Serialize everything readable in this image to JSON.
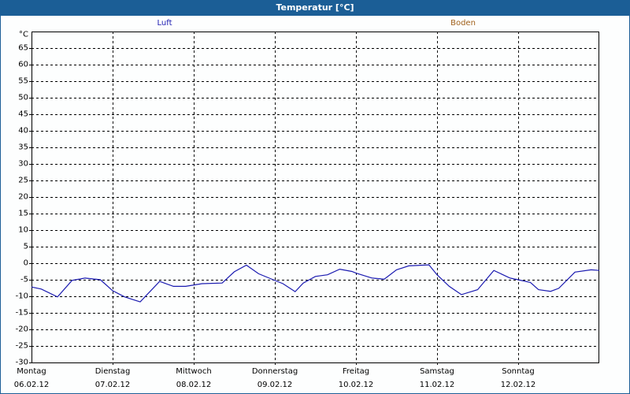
{
  "window": {
    "title": "Temperatur [°C]",
    "border_color": "#1d5f97",
    "titlebar_color": "#1b5e96"
  },
  "legend": [
    {
      "label": "Luft",
      "color": "#1a1ab0"
    },
    {
      "label": "Boden",
      "color": "#a0601a"
    }
  ],
  "y_axis": {
    "unit_label": "°C",
    "ticks": [
      "65",
      "60",
      "55",
      "50",
      "45",
      "40",
      "35",
      "30",
      "25",
      "20",
      "15",
      "10",
      "5",
      "0",
      "-5",
      "-10",
      "-15",
      "-20",
      "-25",
      "-30"
    ]
  },
  "x_axis": {
    "days": [
      {
        "weekday": "Montag",
        "date": "06.02.12"
      },
      {
        "weekday": "Dienstag",
        "date": "07.02.12"
      },
      {
        "weekday": "Mittwoch",
        "date": "08.02.12"
      },
      {
        "weekday": "Donnerstag",
        "date": "09.02.12"
      },
      {
        "weekday": "Freitag",
        "date": "10.02.12"
      },
      {
        "weekday": "Samstag",
        "date": "11.02.12"
      },
      {
        "weekday": "Sonntag",
        "date": "12.02.12"
      }
    ]
  },
  "chart_data": {
    "type": "line",
    "title": "Temperatur [°C]",
    "xlabel": "",
    "ylabel": "°C",
    "ylim": [
      -30,
      70
    ],
    "yticks": [
      -30,
      -25,
      -20,
      -15,
      -10,
      -5,
      0,
      5,
      10,
      15,
      20,
      25,
      30,
      35,
      40,
      45,
      50,
      55,
      60,
      65
    ],
    "grid": true,
    "legend_position": "top",
    "categories": [
      "Montag 06.02.12",
      "Dienstag 07.02.12",
      "Mittwoch 08.02.12",
      "Donnerstag 09.02.12",
      "Freitag 10.02.12",
      "Samstag 11.02.12",
      "Sonntag 12.02.12"
    ],
    "series": [
      {
        "name": "Luft",
        "color": "#1a1ab0",
        "x_days": [
          0.0,
          0.12,
          0.32,
          0.5,
          0.66,
          0.85,
          1.0,
          1.15,
          1.34,
          1.58,
          1.75,
          1.9,
          2.1,
          2.35,
          2.5,
          2.65,
          2.8,
          2.98,
          3.1,
          3.25,
          3.35,
          3.5,
          3.65,
          3.8,
          3.95,
          4.0,
          4.2,
          4.35,
          4.5,
          4.65,
          4.9,
          5.0,
          5.15,
          5.3,
          5.5,
          5.7,
          5.9,
          6.0,
          6.15,
          6.25,
          6.4,
          6.5,
          6.7,
          6.9,
          7.0
        ],
        "values": [
          -7.2,
          -7.8,
          -10.2,
          -5.2,
          -4.5,
          -5.0,
          -8.3,
          -10.2,
          -11.7,
          -5.5,
          -7.0,
          -7.0,
          -6.2,
          -6.0,
          -2.6,
          -0.6,
          -3.2,
          -5.0,
          -6.2,
          -8.6,
          -6.0,
          -4.0,
          -3.5,
          -1.8,
          -2.5,
          -3.0,
          -4.5,
          -4.8,
          -2.0,
          -0.8,
          -0.5,
          -3.5,
          -7.0,
          -9.5,
          -8.0,
          -2.2,
          -4.5,
          -5.0,
          -5.8,
          -8.0,
          -8.5,
          -7.6,
          -2.7,
          -2.0,
          -2.2
        ]
      },
      {
        "name": "Boden",
        "color": "#a0601a",
        "x_days": [],
        "values": []
      }
    ]
  }
}
